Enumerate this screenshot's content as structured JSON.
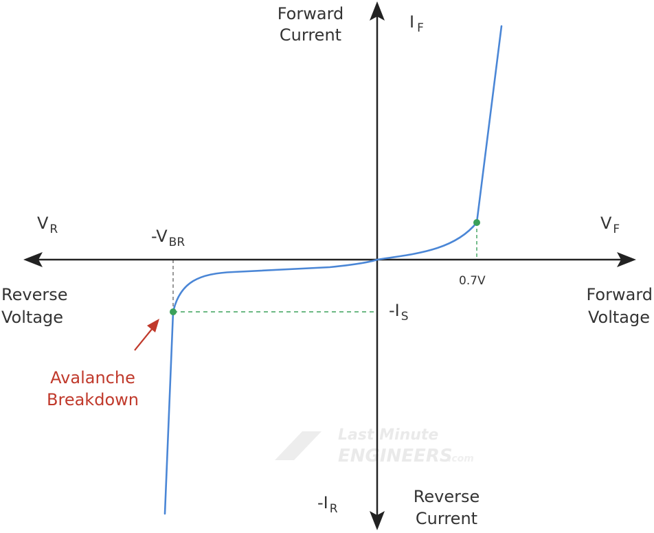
{
  "labels": {
    "forward_current_line1": "Forward",
    "forward_current_line2": "Current",
    "if_main": "I",
    "if_sub": "F",
    "vr_main": "V",
    "vr_sub": "R",
    "vf_main": "V",
    "vf_sub": "F",
    "vbr_main": "-V",
    "vbr_sub": "BR",
    "is_main": "-I",
    "is_sub": "S",
    "ir_main": "-I",
    "ir_sub": "R",
    "knee_voltage": "0.7V",
    "reverse_voltage_line1": "Reverse",
    "reverse_voltage_line2": "Voltage",
    "forward_voltage_line1": "Forward",
    "forward_voltage_line2": "Voltage",
    "reverse_current_line1": "Reverse",
    "reverse_current_line2": "Current",
    "avalanche_line1": "Avalanche",
    "avalanche_line2": "Breakdown"
  },
  "watermark": {
    "line1": "Last Minute",
    "line2": "ENGINEERS",
    "suffix": ".com"
  },
  "colors": {
    "axis": "#222222",
    "curve": "#4a86d6",
    "marker": "#3aa05a",
    "guide_green": "#3aa05a",
    "guide_dark": "#555555",
    "annotation_red": "#c0392b",
    "text": "#333333",
    "watermark": "#e6e6e6"
  }
}
